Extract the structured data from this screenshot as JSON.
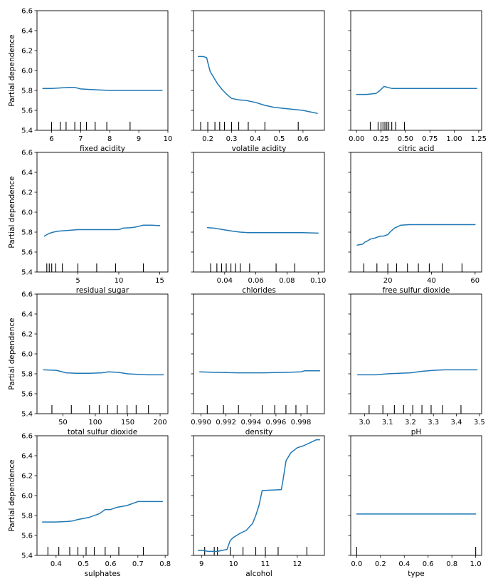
{
  "chart_data": {
    "type": "line",
    "title": "",
    "ylabel": "Partial dependence",
    "ylim": [
      5.4,
      6.6
    ],
    "yticks": [
      5.4,
      5.6,
      5.8,
      6.0,
      6.2,
      6.4,
      6.6
    ],
    "ytick_labels": [
      "5.4",
      "5.6",
      "5.8",
      "6.0",
      "6.2",
      "6.4",
      "6.6"
    ],
    "line_color": "#1f77b4",
    "panels": [
      {
        "xlabel": "fixed acidity",
        "xlim": [
          5.5,
          10
        ],
        "xticks": [
          6,
          7,
          8,
          9,
          10
        ],
        "xtick_labels": [
          "6",
          "7",
          "8",
          "9",
          "10"
        ],
        "x": [
          5.7,
          6.0,
          6.3,
          6.6,
          6.8,
          7.0,
          7.3,
          7.6,
          8.0,
          8.5,
          9.0,
          9.5,
          9.8
        ],
        "y": [
          5.82,
          5.82,
          5.825,
          5.83,
          5.83,
          5.815,
          5.81,
          5.805,
          5.8,
          5.8,
          5.8,
          5.8,
          5.8
        ],
        "deciles": [
          6.0,
          6.3,
          6.5,
          6.8,
          7.0,
          7.2,
          7.5,
          7.9,
          8.7
        ]
      },
      {
        "xlabel": "volatile acidity",
        "xlim": [
          0.14,
          0.69
        ],
        "xticks": [
          0.2,
          0.3,
          0.4,
          0.5,
          0.6
        ],
        "xtick_labels": [
          "0.2",
          "0.3",
          "0.4",
          "0.5",
          "0.6"
        ],
        "x": [
          0.16,
          0.18,
          0.195,
          0.2,
          0.21,
          0.22,
          0.24,
          0.26,
          0.28,
          0.3,
          0.33,
          0.36,
          0.4,
          0.44,
          0.48,
          0.52,
          0.56,
          0.6,
          0.63,
          0.66
        ],
        "y": [
          6.14,
          6.14,
          6.13,
          6.08,
          5.99,
          5.95,
          5.87,
          5.81,
          5.76,
          5.72,
          5.705,
          5.7,
          5.68,
          5.65,
          5.63,
          5.62,
          5.61,
          5.6,
          5.585,
          5.57
        ],
        "deciles": [
          0.17,
          0.2,
          0.23,
          0.25,
          0.27,
          0.3,
          0.33,
          0.37,
          0.44,
          0.58
        ]
      },
      {
        "xlabel": "citric acid",
        "xlim": [
          -0.06,
          1.28
        ],
        "xticks": [
          0.0,
          0.25,
          0.5,
          0.75,
          1.0,
          1.25
        ],
        "xtick_labels": [
          "0.00",
          "0.25",
          "0.50",
          "0.75",
          "1.00",
          "1.25"
        ],
        "x": [
          0.0,
          0.1,
          0.2,
          0.24,
          0.28,
          0.32,
          0.36,
          0.45,
          0.6,
          0.8,
          1.0,
          1.23
        ],
        "y": [
          5.76,
          5.76,
          5.77,
          5.8,
          5.84,
          5.83,
          5.82,
          5.82,
          5.82,
          5.82,
          5.82,
          5.82
        ],
        "deciles": [
          0.14,
          0.22,
          0.25,
          0.27,
          0.29,
          0.31,
          0.33,
          0.36,
          0.4,
          0.49
        ]
      },
      {
        "xlabel": "residual sugar",
        "xlim": [
          0,
          16
        ],
        "xticks": [
          5,
          10,
          15
        ],
        "xtick_labels": [
          "5",
          "10",
          "15"
        ],
        "x": [
          0.9,
          1.2,
          1.6,
          2.0,
          2.6,
          3.5,
          5.0,
          7.0,
          9.0,
          10.0,
          10.5,
          11.5,
          12.0,
          13.0,
          14.0,
          15.0
        ],
        "y": [
          5.76,
          5.775,
          5.79,
          5.8,
          5.81,
          5.815,
          5.825,
          5.825,
          5.825,
          5.825,
          5.84,
          5.845,
          5.85,
          5.87,
          5.87,
          5.865
        ],
        "deciles": [
          1.2,
          1.5,
          1.8,
          2.3,
          3.1,
          5.0,
          7.3,
          9.6,
          13.0
        ]
      },
      {
        "xlabel": "chlorides",
        "xlim": [
          0.02,
          0.104
        ],
        "xticks": [
          0.04,
          0.06,
          0.08,
          0.1
        ],
        "xtick_labels": [
          "0.04",
          "0.06",
          "0.08",
          "0.10"
        ],
        "x": [
          0.029,
          0.033,
          0.037,
          0.041,
          0.045,
          0.05,
          0.055,
          0.065,
          0.08,
          0.09,
          0.1
        ],
        "y": [
          5.845,
          5.84,
          5.83,
          5.82,
          5.81,
          5.8,
          5.795,
          5.795,
          5.795,
          5.795,
          5.79
        ],
        "deciles": [
          0.031,
          0.035,
          0.038,
          0.041,
          0.044,
          0.047,
          0.05,
          0.056,
          0.073,
          0.085
        ]
      },
      {
        "xlabel": "free sulfur dioxide",
        "xlim": [
          3,
          63
        ],
        "xticks": [
          20,
          40,
          60
        ],
        "xtick_labels": [
          "20",
          "40",
          "60"
        ],
        "x": [
          6.0,
          8.5,
          9.5,
          10.5,
          12.0,
          14.0,
          16.5,
          18.0,
          20.0,
          21.0,
          23.0,
          26.0,
          30.0,
          40.0,
          50.0,
          60.0
        ],
        "y": [
          5.67,
          5.68,
          5.7,
          5.71,
          5.73,
          5.74,
          5.76,
          5.76,
          5.775,
          5.8,
          5.84,
          5.87,
          5.875,
          5.875,
          5.875,
          5.875
        ],
        "deciles": [
          9.0,
          15.0,
          20.0,
          24.0,
          29.0,
          34.0,
          39.0,
          45.0,
          54.0
        ]
      },
      {
        "xlabel": "total sulfur dioxide",
        "xlim": [
          10,
          212
        ],
        "xticks": [
          50,
          100,
          150,
          200
        ],
        "xtick_labels": [
          "50",
          "100",
          "150",
          "200"
        ],
        "x": [
          20,
          40,
          55,
          70,
          90,
          110,
          120,
          135,
          150,
          165,
          180,
          205
        ],
        "y": [
          5.84,
          5.835,
          5.81,
          5.805,
          5.805,
          5.81,
          5.82,
          5.815,
          5.8,
          5.795,
          5.79,
          5.79
        ],
        "deciles": [
          33,
          63,
          91,
          106,
          119,
          134,
          149,
          163,
          182
        ]
      },
      {
        "xlabel": "density",
        "xlim": [
          0.9894,
          0.99988
        ],
        "xticks": [
          0.99,
          0.992,
          0.994,
          0.996,
          0.998
        ],
        "xtick_labels": [
          "0.990",
          "0.992",
          "0.994",
          "0.996",
          "0.998"
        ],
        "x": [
          0.9899,
          0.991,
          0.993,
          0.995,
          0.997,
          0.998,
          0.9983,
          0.9995
        ],
        "y": [
          5.82,
          5.815,
          5.81,
          5.81,
          5.815,
          5.82,
          5.83,
          5.83
        ],
        "deciles": [
          0.9905,
          0.9918,
          0.993,
          0.9949,
          0.9959,
          0.9968,
          0.9976,
          0.9985
        ]
      },
      {
        "xlabel": "pH",
        "xlim": [
          2.94,
          3.51
        ],
        "xticks": [
          3.0,
          3.1,
          3.2,
          3.3,
          3.4,
          3.5
        ],
        "xtick_labels": [
          "3.0",
          "3.1",
          "3.2",
          "3.3",
          "3.4",
          "3.5"
        ],
        "x": [
          2.97,
          3.05,
          3.1,
          3.15,
          3.2,
          3.25,
          3.3,
          3.35,
          3.4,
          3.49
        ],
        "y": [
          5.79,
          5.79,
          5.8,
          5.805,
          5.81,
          5.825,
          5.835,
          5.84,
          5.84,
          5.84
        ],
        "deciles": [
          3.02,
          3.08,
          3.13,
          3.17,
          3.21,
          3.25,
          3.29,
          3.34,
          3.42
        ]
      },
      {
        "xlabel": "sulphates",
        "xlim": [
          0.33,
          0.81
        ],
        "xticks": [
          0.4,
          0.5,
          0.6,
          0.7,
          0.8
        ],
        "xtick_labels": [
          "0.4",
          "0.5",
          "0.6",
          "0.7",
          "0.8"
        ],
        "x": [
          0.35,
          0.4,
          0.44,
          0.46,
          0.48,
          0.52,
          0.56,
          0.58,
          0.6,
          0.62,
          0.66,
          0.7,
          0.75,
          0.79
        ],
        "y": [
          5.735,
          5.735,
          5.74,
          5.745,
          5.76,
          5.78,
          5.82,
          5.86,
          5.86,
          5.88,
          5.9,
          5.94,
          5.94,
          5.94
        ],
        "deciles": [
          0.37,
          0.41,
          0.45,
          0.48,
          0.51,
          0.54,
          0.58,
          0.63,
          0.72
        ]
      },
      {
        "xlabel": "alcohol",
        "xlim": [
          8.75,
          12.85
        ],
        "xticks": [
          9,
          10,
          11,
          12
        ],
        "xtick_labels": [
          "9",
          "10",
          "11",
          "12"
        ],
        "x": [
          8.9,
          9.05,
          9.2,
          9.5,
          9.8,
          9.9,
          10.0,
          10.2,
          10.4,
          10.6,
          10.7,
          10.8,
          10.9,
          11.5,
          11.55,
          11.65,
          11.8,
          12.0,
          12.2,
          12.4,
          12.6,
          12.7
        ],
        "y": [
          5.45,
          5.45,
          5.44,
          5.44,
          5.46,
          5.55,
          5.58,
          5.62,
          5.65,
          5.72,
          5.8,
          5.9,
          6.05,
          6.06,
          6.15,
          6.35,
          6.43,
          6.48,
          6.5,
          6.53,
          6.56,
          6.56
        ],
        "deciles": [
          9.1,
          9.4,
          9.5,
          9.9,
          10.3,
          10.7,
          11.0,
          11.4,
          12.3
        ]
      },
      {
        "xlabel": "type",
        "xlim": [
          -0.05,
          1.05
        ],
        "xticks": [
          0.0,
          0.2,
          0.4,
          0.6,
          0.8,
          1.0
        ],
        "xtick_labels": [
          "0.0",
          "0.2",
          "0.4",
          "0.6",
          "0.8",
          "1.0"
        ],
        "x": [
          0.0,
          1.0
        ],
        "y": [
          5.815,
          5.815
        ],
        "deciles": [
          0.0,
          1.0
        ]
      }
    ]
  }
}
